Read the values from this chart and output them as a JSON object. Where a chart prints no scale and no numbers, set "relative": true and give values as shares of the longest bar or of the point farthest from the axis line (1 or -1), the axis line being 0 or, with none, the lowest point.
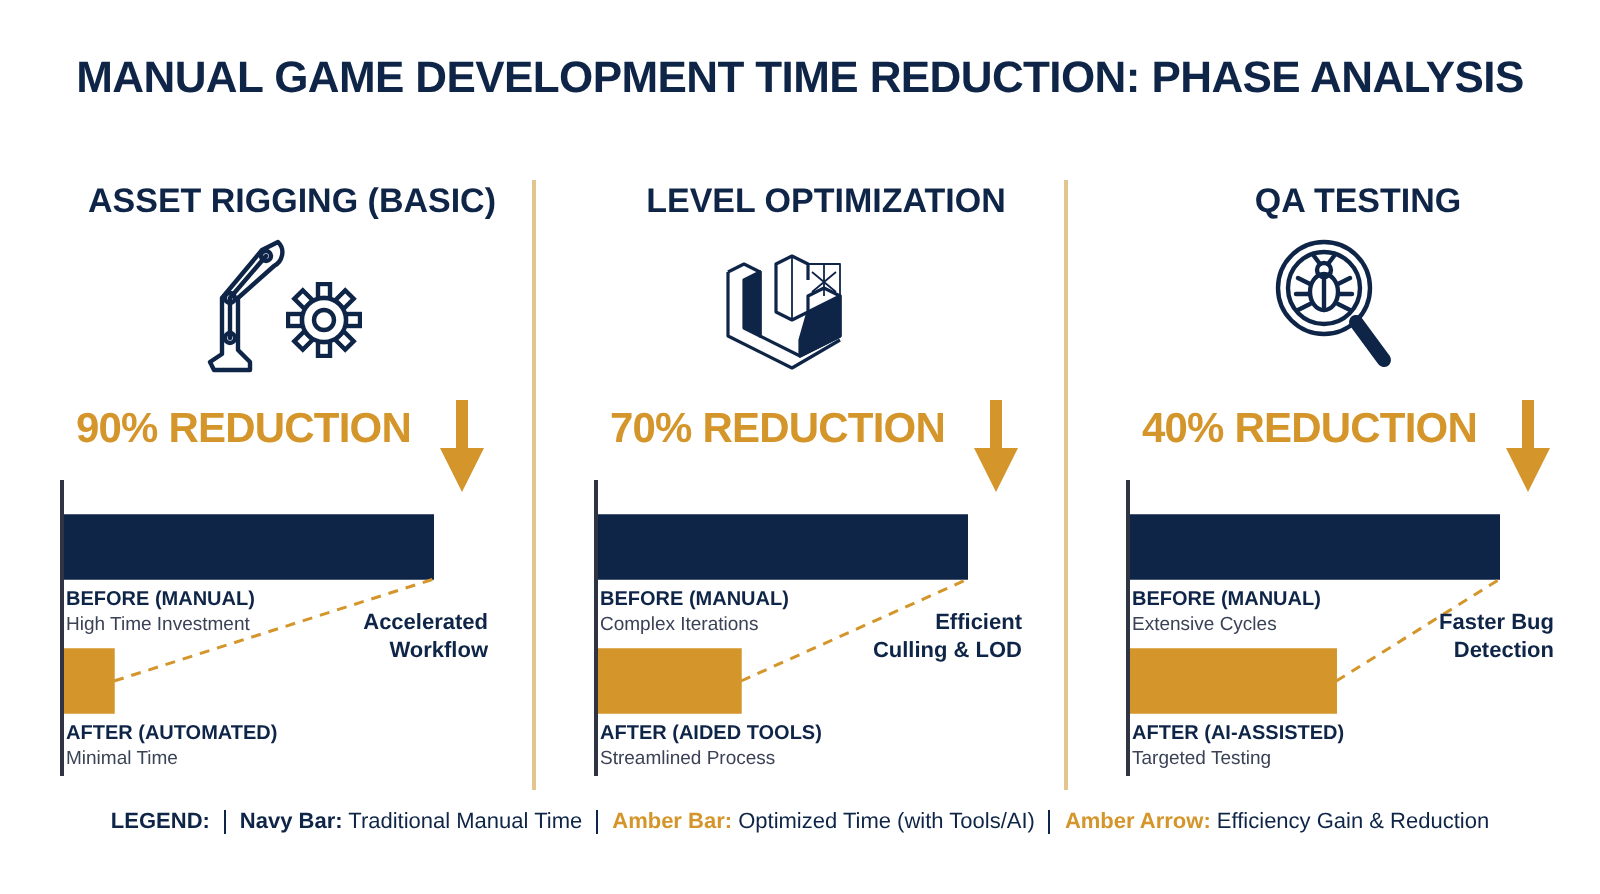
{
  "chart_data": [
    {
      "type": "other",
      "title": "MANUAL GAME DEVELOPMENT TIME REDUCTION: PHASE ANALYSIS"
    },
    {
      "type": "bar",
      "orientation": "horizontal",
      "relative": true,
      "title": "ASSET RIGGING (BASIC)",
      "subtitle": "90% REDUCTION",
      "categories": [
        "BEFORE (MANUAL)",
        "AFTER (AUTOMATED)"
      ],
      "values": [
        1,
        0.14
      ],
      "colors": [
        "#0f2548",
        "#d4952a"
      ],
      "annotations": [
        "High Time Investment",
        "Minimal Time",
        "Accelerated Workflow"
      ]
    },
    {
      "type": "bar",
      "orientation": "horizontal",
      "relative": true,
      "title": "LEVEL OPTIMIZATION",
      "subtitle": "70% REDUCTION",
      "categories": [
        "BEFORE (MANUAL)",
        "AFTER (AIDED TOOLS)"
      ],
      "values": [
        1,
        0.39
      ],
      "colors": [
        "#0f2548",
        "#d4952a"
      ],
      "annotations": [
        "Complex Iterations",
        "Streamlined Process",
        "Efficient Culling & LOD"
      ]
    },
    {
      "type": "bar",
      "orientation": "horizontal",
      "relative": true,
      "title": "QA TESTING",
      "subtitle": "40% REDUCTION",
      "categories": [
        "BEFORE (MANUAL)",
        "AFTER (AI-ASSISTED)"
      ],
      "values": [
        1,
        0.56
      ],
      "colors": [
        "#0f2548",
        "#d4952a"
      ],
      "annotations": [
        "Extensive Cycles",
        "Targeted Testing",
        "Faster Bug Detection"
      ]
    },
    {
      "type": "other",
      "annotations": [
        "LEGEND:",
        "Navy Bar: Traditional Manual Time",
        "Amber Bar: Optimized Time (with Tools/AI)",
        "Amber Arrow: Efficiency Gain & Reduction"
      ]
    }
  ]
}
